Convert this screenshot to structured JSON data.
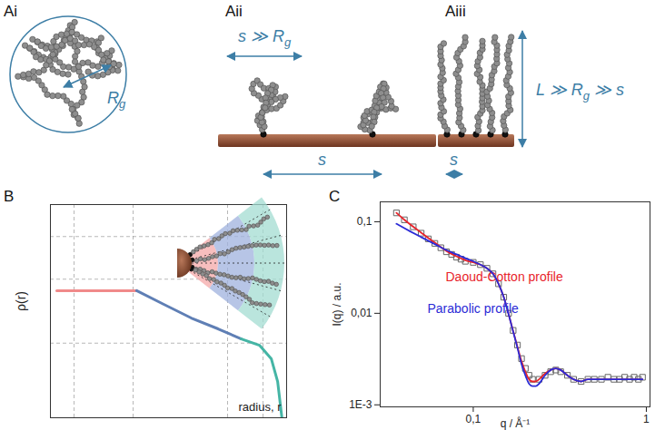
{
  "diagram": {
    "panels": [
      {
        "label": "Ai",
        "annotations": [
          [
            {
              "text": "R"
            },
            {
              "text": "g",
              "sub": true
            }
          ]
        ]
      },
      {
        "label": "Aii",
        "annotations": [
          [
            {
              "text": "s ≫ R"
            },
            {
              "text": "g",
              "sub": true
            }
          ],
          [
            {
              "text": "s"
            }
          ]
        ]
      },
      {
        "label": "Aiii",
        "annotations": [
          [
            {
              "text": "L ≫ R"
            },
            {
              "text": "g",
              "sub": true
            },
            {
              "text": " ≫ s"
            }
          ],
          [
            {
              "text": "s"
            }
          ]
        ]
      }
    ]
  },
  "chart_data": [
    {
      "type": "line",
      "title": "B",
      "x_label": "radius, r",
      "y_label": "ρ(r)",
      "xlim": [
        0,
        10
      ],
      "ylim": [
        0,
        10
      ],
      "xticks": [
        1,
        3.5,
        7.5,
        9
      ],
      "yticks": [
        3.5,
        6.5,
        8.5
      ],
      "grid": true,
      "tick_labels": false,
      "series": [
        {
          "color": "#f08a8a",
          "x": [
            0.27,
            3.65
          ],
          "values": [
            5.96,
            5.96
          ]
        },
        {
          "color": "#5f7fb5",
          "x": [
            3.65,
            4.8,
            5.96,
            7.1,
            8.08
          ],
          "values": [
            5.96,
            5.32,
            4.68,
            4.17,
            3.7
          ]
        },
        {
          "color": "#45b5a5",
          "x": [
            8.08,
            8.85,
            9.35,
            9.62,
            9.8
          ],
          "values": [
            3.7,
            3.4,
            2.77,
            1.7,
            0
          ]
        }
      ]
    },
    {
      "type": "scatter",
      "title": "C",
      "x_label": "q / Å⁻¹",
      "y_label": "I(q) / a.u.",
      "log": true,
      "xlim": [
        0.029,
        1.05
      ],
      "ylim": [
        0.00095,
        0.165
      ],
      "xticks": [
        {
          "value": 0.1,
          "label": "0,1"
        },
        1
      ],
      "yticks": [
        {
          "value": 0.001,
          "label": "1E-3"
        },
        {
          "value": 0.01,
          "label": "0,01"
        },
        {
          "value": 0.1,
          "label": "0,1"
        }
      ],
      "series": [
        {
          "type": "scatter",
          "marker": "square",
          "color": "#666666",
          "x": [
            0.036,
            0.04,
            0.045,
            0.05,
            0.055,
            0.06,
            0.065,
            0.07,
            0.075,
            0.08,
            0.085,
            0.09,
            0.1,
            0.11,
            0.12,
            0.13,
            0.14,
            0.15,
            0.16,
            0.17,
            0.18,
            0.19,
            0.2,
            0.21,
            0.22,
            0.24,
            0.26,
            0.28,
            0.3,
            0.32,
            0.35,
            0.38,
            0.42,
            0.46,
            0.5,
            0.55,
            0.6,
            0.65,
            0.7,
            0.75,
            0.8,
            0.85,
            0.9,
            0.95
          ],
          "values": [
            0.125,
            0.105,
            0.088,
            0.075,
            0.065,
            0.058,
            0.052,
            0.047,
            0.044,
            0.041,
            0.039,
            0.037,
            0.036,
            0.034,
            0.031,
            0.027,
            0.021,
            0.015,
            0.01,
            0.0065,
            0.0045,
            0.0032,
            0.0025,
            0.0021,
            0.0019,
            0.0019,
            0.0021,
            0.0023,
            0.0024,
            0.0023,
            0.0021,
            0.0019,
            0.0018,
            0.0019,
            0.0019,
            0.0019,
            0.002,
            0.0019,
            0.0019,
            0.002,
            0.0019,
            0.002,
            0.0019,
            0.002
          ]
        },
        {
          "name": "Daoud-Cotton profile",
          "type": "line",
          "color": "#e8242b",
          "x": [
            0.036,
            0.04,
            0.05,
            0.06,
            0.07,
            0.08,
            0.09,
            0.1,
            0.11,
            0.12,
            0.13,
            0.14,
            0.15,
            0.16,
            0.17,
            0.18,
            0.19,
            0.2,
            0.21,
            0.22,
            0.23,
            0.24,
            0.26,
            0.28,
            0.3,
            0.32,
            0.35,
            0.38,
            0.42,
            0.46,
            0.5,
            0.6,
            0.7,
            0.8,
            0.9,
            0.95
          ],
          "values": [
            0.125,
            0.105,
            0.076,
            0.059,
            0.048,
            0.042,
            0.038,
            0.036,
            0.034,
            0.031,
            0.027,
            0.021,
            0.015,
            0.0098,
            0.0064,
            0.0043,
            0.003,
            0.0023,
            0.0019,
            0.0018,
            0.0018,
            0.0019,
            0.0022,
            0.0024,
            0.0025,
            0.0024,
            0.0021,
            0.0019,
            0.0018,
            0.0019,
            0.0019,
            0.0019,
            0.0019,
            0.0019,
            0.0019,
            0.0019
          ]
        },
        {
          "name": "Parabolic profile",
          "type": "line",
          "color": "#2b2bd6",
          "x": [
            0.036,
            0.04,
            0.05,
            0.06,
            0.07,
            0.08,
            0.09,
            0.1,
            0.11,
            0.12,
            0.13,
            0.14,
            0.15,
            0.16,
            0.17,
            0.18,
            0.19,
            0.2,
            0.21,
            0.22,
            0.23,
            0.24,
            0.26,
            0.28,
            0.3,
            0.32,
            0.35,
            0.38,
            0.42,
            0.46,
            0.5,
            0.6,
            0.7,
            0.8,
            0.9,
            0.95
          ],
          "values": [
            0.095,
            0.085,
            0.068,
            0.057,
            0.049,
            0.044,
            0.04,
            0.037,
            0.034,
            0.031,
            0.027,
            0.021,
            0.015,
            0.0098,
            0.0063,
            0.0042,
            0.0028,
            0.0021,
            0.0017,
            0.0016,
            0.0016,
            0.0017,
            0.0021,
            0.0024,
            0.0025,
            0.0024,
            0.0021,
            0.0019,
            0.0018,
            0.0019,
            0.0019,
            0.0019,
            0.0019,
            0.0019,
            0.0019,
            0.0019
          ]
        }
      ]
    }
  ]
}
